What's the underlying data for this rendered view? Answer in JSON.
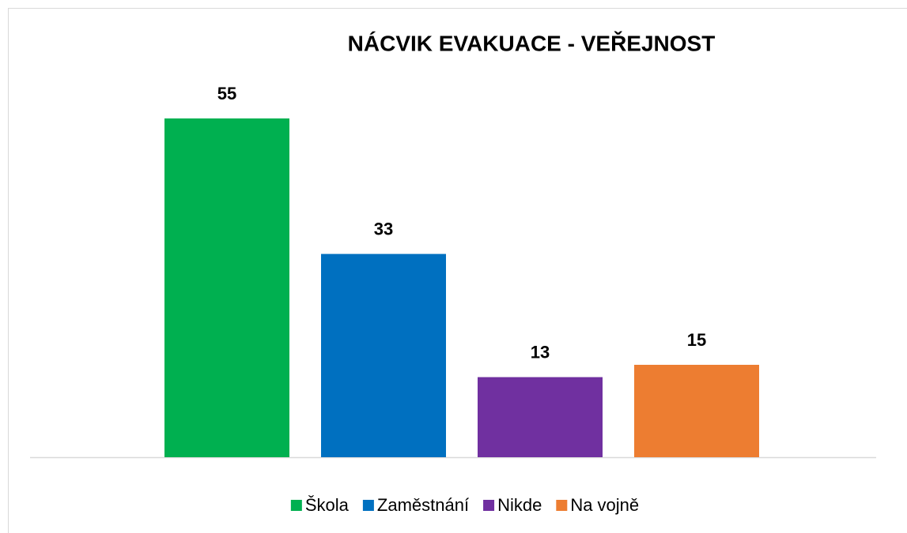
{
  "chart_data": {
    "type": "bar",
    "title": "NÁCVIK EVAKUACE - VEŘEJNOST",
    "series": [
      {
        "name": "Škola",
        "color": "#00b050",
        "values": [
          55
        ]
      },
      {
        "name": "Zaměstnání",
        "color": "#0070c0",
        "values": [
          33
        ]
      },
      {
        "name": "Nikde",
        "color": "#7030a0",
        "values": [
          13
        ]
      },
      {
        "name": "Na vojně",
        "color": "#ed7d31",
        "values": [
          15
        ]
      }
    ],
    "ylim": [
      0,
      60
    ],
    "legend": "bottom"
  }
}
